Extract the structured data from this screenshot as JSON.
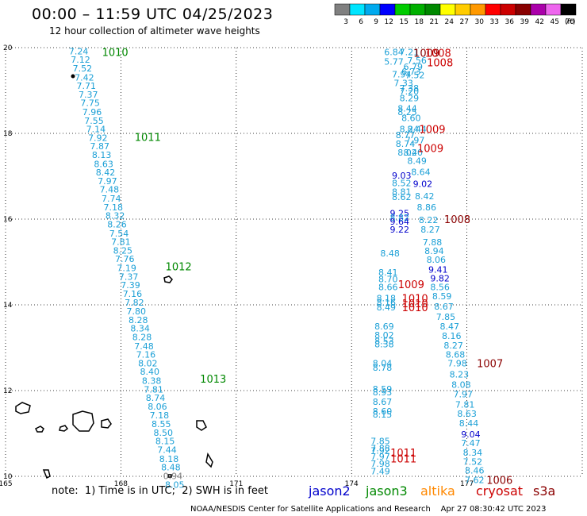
{
  "header": {
    "title": "00:00 – 11:59 UTC 04/25/2023",
    "subtitle": "12 hour collection of altimeter wave heights"
  },
  "footer": {
    "note": "note:  1) Time is in UTC;  2) SWH is in feet",
    "credit": "NOAA/NESDIS Center for Satellite Applications and Research    Apr 27 08:30:42 UTC 2023",
    "satellites": [
      {
        "name": "jason2",
        "color": "#0000cc"
      },
      {
        "name": "jason3",
        "color": "#008800"
      },
      {
        "name": "altika",
        "color": "#ff8800"
      },
      {
        "name": "cryosat",
        "color": "#cc0000"
      },
      {
        "name": "s3a",
        "color": "#8b0000"
      }
    ]
  },
  "legend": {
    "unit": "(ft)",
    "bins": [
      {
        "label": "3",
        "color": "#808080"
      },
      {
        "label": "6",
        "color": "#00e5ff"
      },
      {
        "label": "9",
        "color": "#00aaee"
      },
      {
        "label": "12",
        "color": "#0000ff"
      },
      {
        "label": "15",
        "color": "#00cc00"
      },
      {
        "label": "18",
        "color": "#00b000"
      },
      {
        "label": "21",
        "color": "#008800"
      },
      {
        "label": "24",
        "color": "#ffff00"
      },
      {
        "label": "27",
        "color": "#ffcc00"
      },
      {
        "label": "30",
        "color": "#ff9900"
      },
      {
        "label": "33",
        "color": "#ff0000"
      },
      {
        "label": "36",
        "color": "#cc0000"
      },
      {
        "label": "39",
        "color": "#880000"
      },
      {
        "label": "42",
        "color": "#aa00aa"
      },
      {
        "label": "45",
        "color": "#ee66ee"
      },
      {
        "label": "70",
        "color": "#000000"
      }
    ]
  },
  "chart_data": {
    "type": "scatter",
    "xlim": [
      165,
      180
    ],
    "ylim": [
      10,
      20
    ],
    "xticks": [
      165,
      168,
      171,
      174,
      177
    ],
    "yticks": [
      10,
      12,
      14,
      16,
      18,
      20
    ],
    "grid": true,
    "track_a": {
      "colors": {
        "swh": "#1a9fd6",
        "time": "#008800"
      },
      "points": [
        {
          "x": 166.9,
          "y": 19.92,
          "v": "7.24"
        },
        {
          "x": 166.95,
          "y": 19.72,
          "v": "7.12"
        },
        {
          "x": 167.0,
          "y": 19.52,
          "v": "7.52"
        },
        {
          "x": 167.05,
          "y": 19.31,
          "v": "7.42"
        },
        {
          "x": 167.1,
          "y": 19.11,
          "v": "7.71"
        },
        {
          "x": 167.15,
          "y": 18.91,
          "v": "7.37"
        },
        {
          "x": 167.2,
          "y": 18.71,
          "v": "7.75"
        },
        {
          "x": 167.25,
          "y": 18.5,
          "v": "7.96"
        },
        {
          "x": 167.3,
          "y": 18.3,
          "v": "7.55"
        },
        {
          "x": 167.35,
          "y": 18.1,
          "v": "7.14"
        },
        {
          "x": 167.4,
          "y": 17.9,
          "v": "7.92"
        },
        {
          "x": 167.45,
          "y": 17.7,
          "v": "7.87"
        },
        {
          "x": 167.5,
          "y": 17.5,
          "v": "8.13"
        },
        {
          "x": 167.55,
          "y": 17.29,
          "v": "8.63"
        },
        {
          "x": 167.6,
          "y": 17.09,
          "v": "8.42"
        },
        {
          "x": 167.65,
          "y": 16.89,
          "v": "7.97"
        },
        {
          "x": 167.7,
          "y": 16.69,
          "v": "7.48"
        },
        {
          "x": 167.75,
          "y": 16.48,
          "v": "7.74"
        },
        {
          "x": 167.8,
          "y": 16.28,
          "v": "7.18"
        },
        {
          "x": 167.85,
          "y": 16.08,
          "v": "8.32"
        },
        {
          "x": 167.9,
          "y": 15.88,
          "v": "8.26"
        },
        {
          "x": 167.95,
          "y": 15.67,
          "v": "7.54"
        },
        {
          "x": 168.0,
          "y": 15.47,
          "v": "7.81"
        },
        {
          "x": 168.05,
          "y": 15.27,
          "v": "8.25"
        },
        {
          "x": 168.1,
          "y": 15.07,
          "v": "7.76"
        },
        {
          "x": 168.15,
          "y": 14.86,
          "v": "7.19"
        },
        {
          "x": 168.2,
          "y": 14.66,
          "v": "7.37"
        },
        {
          "x": 168.25,
          "y": 14.46,
          "v": "7.39"
        },
        {
          "x": 168.3,
          "y": 14.26,
          "v": "7.16"
        },
        {
          "x": 168.35,
          "y": 14.06,
          "v": "7.82"
        },
        {
          "x": 168.4,
          "y": 13.85,
          "v": "7.80"
        },
        {
          "x": 168.45,
          "y": 13.65,
          "v": "8.28"
        },
        {
          "x": 168.5,
          "y": 13.45,
          "v": "8.34"
        },
        {
          "x": 168.55,
          "y": 13.25,
          "v": "8.28"
        },
        {
          "x": 168.6,
          "y": 13.04,
          "v": "7.48"
        },
        {
          "x": 168.65,
          "y": 12.84,
          "v": "7.16"
        },
        {
          "x": 168.7,
          "y": 12.64,
          "v": "8.02"
        },
        {
          "x": 168.75,
          "y": 12.44,
          "v": "8.40"
        },
        {
          "x": 168.8,
          "y": 12.23,
          "v": "8.38"
        },
        {
          "x": 168.85,
          "y": 12.03,
          "v": "7.81"
        },
        {
          "x": 168.9,
          "y": 11.83,
          "v": "8.74"
        },
        {
          "x": 168.95,
          "y": 11.63,
          "v": "8.06"
        },
        {
          "x": 169.0,
          "y": 11.43,
          "v": "7.18"
        },
        {
          "x": 169.05,
          "y": 11.22,
          "v": "8.55"
        },
        {
          "x": 169.1,
          "y": 11.02,
          "v": "8.50"
        },
        {
          "x": 169.15,
          "y": 10.82,
          "v": "8.15"
        },
        {
          "x": 169.2,
          "y": 10.62,
          "v": "7.44"
        },
        {
          "x": 169.25,
          "y": 10.41,
          "v": "8.18"
        },
        {
          "x": 169.3,
          "y": 10.21,
          "v": "8.48"
        },
        {
          "x": 169.35,
          "y": 10.01,
          "v": "0.94",
          "color": "#808080"
        },
        {
          "x": 169.4,
          "y": 9.81,
          "v": "8.05"
        }
      ],
      "times": [
        {
          "x": 167.85,
          "y": 19.9,
          "t": "1010"
        },
        {
          "x": 168.7,
          "y": 17.92,
          "t": "1011"
        },
        {
          "x": 169.5,
          "y": 14.9,
          "t": "1012"
        },
        {
          "x": 170.4,
          "y": 12.28,
          "t": "1013"
        }
      ]
    },
    "track_b": {
      "points": [
        {
          "x": 175.1,
          "y": 19.9,
          "v": "6.84",
          "c": "#1a9fd6"
        },
        {
          "x": 175.5,
          "y": 19.9,
          "v": "7.21",
          "c": "#1a9fd6"
        },
        {
          "x": 175.7,
          "y": 19.7,
          "v": "7.56",
          "c": "#1a9fd6"
        },
        {
          "x": 175.1,
          "y": 19.68,
          "v": "5.77",
          "c": "#1a9fd6"
        },
        {
          "x": 175.6,
          "y": 19.56,
          "v": "6.79",
          "c": "#1a9fd6"
        },
        {
          "x": 175.55,
          "y": 19.44,
          "v": "6.73",
          "c": "#1a9fd6"
        },
        {
          "x": 175.3,
          "y": 19.38,
          "v": "7.94",
          "c": "#1a9fd6"
        },
        {
          "x": 175.65,
          "y": 19.36,
          "v": "7.52",
          "c": "#1a9fd6"
        },
        {
          "x": 175.35,
          "y": 19.18,
          "v": "7.33",
          "c": "#1a9fd6"
        },
        {
          "x": 175.5,
          "y": 19.06,
          "v": "7.38",
          "c": "#1a9fd6"
        },
        {
          "x": 175.5,
          "y": 18.98,
          "v": "7.20",
          "c": "#1a9fd6"
        },
        {
          "x": 175.5,
          "y": 18.82,
          "v": "8.29",
          "c": "#1a9fd6"
        },
        {
          "x": 175.45,
          "y": 18.58,
          "v": "8.44",
          "c": "#1a9fd6"
        },
        {
          "x": 175.45,
          "y": 18.5,
          "v": "8.25",
          "c": "#1a9fd6"
        },
        {
          "x": 175.55,
          "y": 18.36,
          "v": "8.60",
          "c": "#1a9fd6"
        },
        {
          "x": 175.5,
          "y": 18.1,
          "v": "8.24",
          "c": "#1a9fd6"
        },
        {
          "x": 175.7,
          "y": 18.1,
          "v": "8.44",
          "c": "#1a9fd6"
        },
        {
          "x": 175.4,
          "y": 17.96,
          "v": "8.77",
          "c": "#1a9fd6"
        },
        {
          "x": 175.65,
          "y": 17.84,
          "v": "7.97",
          "c": "#1a9fd6"
        },
        {
          "x": 175.4,
          "y": 17.76,
          "v": "8.74",
          "c": "#1a9fd6"
        },
        {
          "x": 175.45,
          "y": 17.56,
          "v": "8.02",
          "c": "#1a9fd6"
        },
        {
          "x": 175.6,
          "y": 17.56,
          "v": "8.40",
          "c": "#1a9fd6"
        },
        {
          "x": 175.7,
          "y": 17.36,
          "v": "8.49",
          "c": "#1a9fd6"
        },
        {
          "x": 175.8,
          "y": 17.1,
          "v": "8.64",
          "c": "#1a9fd6"
        },
        {
          "x": 175.3,
          "y": 17.02,
          "v": "9.03",
          "c": "#0000cc"
        },
        {
          "x": 175.3,
          "y": 16.84,
          "v": "8.52",
          "c": "#1a9fd6"
        },
        {
          "x": 175.85,
          "y": 16.82,
          "v": "9.02",
          "c": "#0000cc"
        },
        {
          "x": 175.3,
          "y": 16.64,
          "v": "8.81",
          "c": "#1a9fd6"
        },
        {
          "x": 175.3,
          "y": 16.52,
          "v": "8.62",
          "c": "#1a9fd6"
        },
        {
          "x": 175.9,
          "y": 16.54,
          "v": "8.42",
          "c": "#1a9fd6"
        },
        {
          "x": 175.95,
          "y": 16.28,
          "v": "8.86",
          "c": "#1a9fd6"
        },
        {
          "x": 175.25,
          "y": 16.14,
          "v": "9.25",
          "c": "#0000cc"
        },
        {
          "x": 175.25,
          "y": 16.04,
          "v": "8.82",
          "c": "#1a9fd6"
        },
        {
          "x": 175.25,
          "y": 15.94,
          "v": "9.64",
          "c": "#0000cc"
        },
        {
          "x": 176.0,
          "y": 15.98,
          "v": "8.22",
          "c": "#1a9fd6"
        },
        {
          "x": 175.25,
          "y": 15.76,
          "v": "9.22",
          "c": "#0000cc"
        },
        {
          "x": 176.05,
          "y": 15.76,
          "v": "8.27",
          "c": "#1a9fd6"
        },
        {
          "x": 176.1,
          "y": 15.46,
          "v": "7.88",
          "c": "#1a9fd6"
        },
        {
          "x": 176.15,
          "y": 15.26,
          "v": "8.94",
          "c": "#1a9fd6"
        },
        {
          "x": 175.0,
          "y": 15.2,
          "v": "8.48",
          "c": "#1a9fd6"
        },
        {
          "x": 176.2,
          "y": 15.06,
          "v": "8.06",
          "c": "#1a9fd6"
        },
        {
          "x": 176.25,
          "y": 14.82,
          "v": "9.41",
          "c": "#0000cc"
        },
        {
          "x": 174.95,
          "y": 14.76,
          "v": "8.41",
          "c": "#1a9fd6"
        },
        {
          "x": 174.95,
          "y": 14.6,
          "v": "8.70",
          "c": "#1a9fd6"
        },
        {
          "x": 176.3,
          "y": 14.62,
          "v": "9.82",
          "c": "#0000cc"
        },
        {
          "x": 174.95,
          "y": 14.42,
          "v": "8.66",
          "c": "#1a9fd6"
        },
        {
          "x": 176.3,
          "y": 14.42,
          "v": "8.56",
          "c": "#1a9fd6"
        },
        {
          "x": 176.35,
          "y": 14.2,
          "v": "8.59",
          "c": "#1a9fd6"
        },
        {
          "x": 174.9,
          "y": 14.16,
          "v": "8.18",
          "c": "#1a9fd6"
        },
        {
          "x": 174.9,
          "y": 14.06,
          "v": "8.16",
          "c": "#1a9fd6"
        },
        {
          "x": 174.9,
          "y": 13.94,
          "v": "8.49",
          "c": "#1a9fd6"
        },
        {
          "x": 176.4,
          "y": 13.96,
          "v": "8.67",
          "c": "#1a9fd6"
        },
        {
          "x": 176.45,
          "y": 13.72,
          "v": "7.85",
          "c": "#1a9fd6"
        },
        {
          "x": 174.85,
          "y": 13.5,
          "v": "8.69",
          "c": "#1a9fd6"
        },
        {
          "x": 176.55,
          "y": 13.5,
          "v": "8.47",
          "c": "#1a9fd6"
        },
        {
          "x": 174.85,
          "y": 13.3,
          "v": "8.02",
          "c": "#1a9fd6"
        },
        {
          "x": 176.6,
          "y": 13.28,
          "v": "8.16",
          "c": "#1a9fd6"
        },
        {
          "x": 174.85,
          "y": 13.16,
          "v": "8.53",
          "c": "#1a9fd6"
        },
        {
          "x": 174.85,
          "y": 13.08,
          "v": "8.38",
          "c": "#1a9fd6"
        },
        {
          "x": 176.65,
          "y": 13.06,
          "v": "8.27",
          "c": "#1a9fd6"
        },
        {
          "x": 176.7,
          "y": 12.84,
          "v": "8.68",
          "c": "#1a9fd6"
        },
        {
          "x": 174.8,
          "y": 12.64,
          "v": "8.04",
          "c": "#1a9fd6"
        },
        {
          "x": 176.75,
          "y": 12.64,
          "v": "7.98",
          "c": "#1a9fd6"
        },
        {
          "x": 174.8,
          "y": 12.54,
          "v": "8.78",
          "c": "#1a9fd6"
        },
        {
          "x": 176.8,
          "y": 12.38,
          "v": "8.23",
          "c": "#1a9fd6"
        },
        {
          "x": 176.85,
          "y": 12.14,
          "v": "8.08",
          "c": "#1a9fd6"
        },
        {
          "x": 174.8,
          "y": 12.04,
          "v": "8.59",
          "c": "#1a9fd6"
        },
        {
          "x": 174.8,
          "y": 11.96,
          "v": "8.93",
          "c": "#1a9fd6"
        },
        {
          "x": 176.9,
          "y": 11.92,
          "v": "7.97",
          "c": "#1a9fd6"
        },
        {
          "x": 174.8,
          "y": 11.74,
          "v": "8.67",
          "c": "#1a9fd6"
        },
        {
          "x": 176.95,
          "y": 11.68,
          "v": "7.81",
          "c": "#1a9fd6"
        },
        {
          "x": 174.8,
          "y": 11.52,
          "v": "8.60",
          "c": "#1a9fd6"
        },
        {
          "x": 174.8,
          "y": 11.44,
          "v": "8.15",
          "c": "#1a9fd6"
        },
        {
          "x": 177.0,
          "y": 11.46,
          "v": "8.63",
          "c": "#1a9fd6"
        },
        {
          "x": 177.05,
          "y": 11.24,
          "v": "8.44",
          "c": "#1a9fd6"
        },
        {
          "x": 177.1,
          "y": 10.98,
          "v": "9.04",
          "c": "#0000cc"
        },
        {
          "x": 174.75,
          "y": 10.82,
          "v": "7.85",
          "c": "#1a9fd6"
        },
        {
          "x": 177.1,
          "y": 10.78,
          "v": "7.47",
          "c": "#1a9fd6"
        },
        {
          "x": 174.75,
          "y": 10.66,
          "v": "7.88",
          "c": "#1a9fd6"
        },
        {
          "x": 174.75,
          "y": 10.6,
          "v": "7.92",
          "c": "#1a9fd6"
        },
        {
          "x": 177.15,
          "y": 10.56,
          "v": "8.34",
          "c": "#1a9fd6"
        },
        {
          "x": 174.75,
          "y": 10.46,
          "v": "7.97",
          "c": "#1a9fd6"
        },
        {
          "x": 177.15,
          "y": 10.34,
          "v": "7.52",
          "c": "#1a9fd6"
        },
        {
          "x": 174.75,
          "y": 10.3,
          "v": "7.98",
          "c": "#1a9fd6"
        },
        {
          "x": 174.75,
          "y": 10.12,
          "v": "7.49",
          "c": "#1a9fd6"
        },
        {
          "x": 177.2,
          "y": 10.14,
          "v": "8.46",
          "c": "#1a9fd6"
        },
        {
          "x": 177.2,
          "y": 9.92,
          "v": "7.62",
          "c": "#1a9fd6"
        }
      ],
      "times": [
        {
          "x": 175.95,
          "y": 19.88,
          "t": "1009",
          "c": "#8b0000"
        },
        {
          "x": 176.25,
          "y": 19.88,
          "t": "1008",
          "c": "#cc0000"
        },
        {
          "x": 176.3,
          "y": 19.66,
          "t": "1008",
          "c": "#cc0000"
        },
        {
          "x": 176.1,
          "y": 18.1,
          "t": "1009",
          "c": "#cc0000"
        },
        {
          "x": 176.05,
          "y": 17.66,
          "t": "1009",
          "c": "#cc0000"
        },
        {
          "x": 176.75,
          "y": 16.0,
          "t": "1008",
          "c": "#8b0000"
        },
        {
          "x": 175.55,
          "y": 14.48,
          "t": "1009",
          "c": "#cc0000"
        },
        {
          "x": 175.65,
          "y": 14.16,
          "t": "1010",
          "c": "#cc0000"
        },
        {
          "x": 175.65,
          "y": 14.04,
          "t": "1010",
          "c": "#cc0000"
        },
        {
          "x": 175.65,
          "y": 13.94,
          "t": "1010",
          "c": "#cc0000"
        },
        {
          "x": 177.6,
          "y": 12.64,
          "t": "1007",
          "c": "#8b0000"
        },
        {
          "x": 175.35,
          "y": 10.56,
          "t": "1011",
          "c": "#cc0000"
        },
        {
          "x": 175.35,
          "y": 10.42,
          "t": "1011",
          "c": "#cc0000"
        },
        {
          "x": 177.85,
          "y": 9.92,
          "t": "1006",
          "c": "#8b0000"
        }
      ]
    }
  }
}
